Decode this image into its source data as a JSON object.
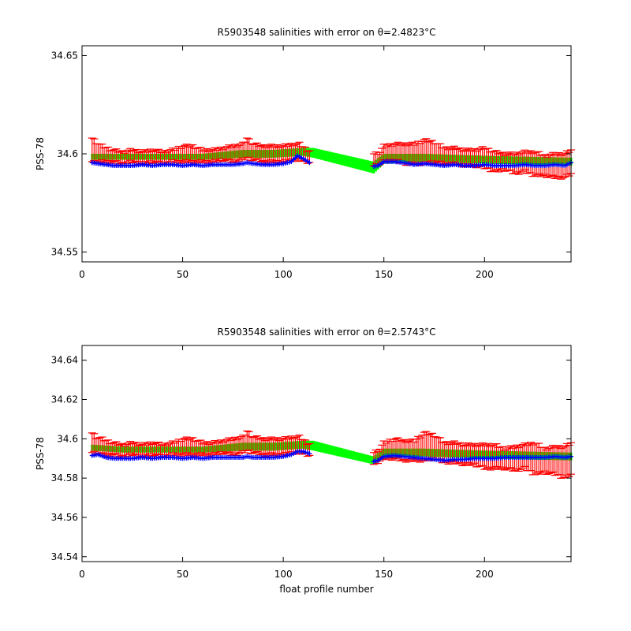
{
  "chart_data": [
    {
      "type": "line",
      "title": "R5903548 salinities with error on θ=2.4823°C",
      "xlabel": "",
      "ylabel": "PSS-78",
      "xlim": [
        0,
        243
      ],
      "ylim": [
        34.545,
        34.655
      ],
      "xticks": [
        "0",
        "50",
        "100",
        "150",
        "200"
      ],
      "yticks": [
        "34.55",
        "34.6",
        "34.65"
      ],
      "grid": false,
      "series": [
        {
          "role": "mapped-band",
          "color": "#00ff00",
          "x": [
            5,
            20,
            40,
            60,
            80,
            95,
            110,
            115,
            145,
            150,
            170,
            200,
            243
          ],
          "upper": [
            34.6,
            34.6,
            34.6,
            34.6,
            34.602,
            34.602,
            34.603,
            34.603,
            34.596,
            34.6,
            34.6,
            34.599,
            34.598
          ],
          "lower": [
            34.597,
            34.597,
            34.597,
            34.597,
            34.598,
            34.598,
            34.599,
            34.598,
            34.59,
            34.595,
            34.596,
            34.595,
            34.594
          ]
        },
        {
          "role": "measured-with-error",
          "color": "#ff0000",
          "x": [
            5,
            7,
            10,
            15,
            20,
            25,
            30,
            35,
            40,
            45,
            50,
            55,
            60,
            65,
            70,
            75,
            80,
            82,
            85,
            90,
            95,
            100,
            105,
            108,
            112,
            145,
            148,
            150,
            155,
            160,
            165,
            170,
            175,
            180,
            185,
            190,
            195,
            200,
            205,
            210,
            215,
            220,
            225,
            230,
            235,
            240,
            243
          ],
          "y": [
            34.602,
            34.601,
            34.6,
            34.599,
            34.598,
            34.599,
            34.598,
            34.599,
            34.598,
            34.599,
            34.6,
            34.6,
            34.599,
            34.599,
            34.6,
            34.6,
            34.601,
            34.603,
            34.601,
            34.6,
            34.6,
            34.6,
            34.601,
            34.601,
            34.599,
            34.597,
            34.598,
            34.6,
            34.601,
            34.6,
            34.6,
            34.601,
            34.601,
            34.599,
            34.599,
            34.598,
            34.598,
            34.598,
            34.596,
            34.596,
            34.595,
            34.596,
            34.595,
            34.594,
            34.594,
            34.594,
            34.596
          ],
          "err": [
            0.006,
            0.005,
            0.004,
            0.003,
            0.003,
            0.003,
            0.003,
            0.003,
            0.003,
            0.003,
            0.004,
            0.004,
            0.003,
            0.003,
            0.003,
            0.004,
            0.004,
            0.005,
            0.004,
            0.004,
            0.004,
            0.004,
            0.004,
            0.004,
            0.003,
            0.003,
            0.003,
            0.004,
            0.004,
            0.005,
            0.005,
            0.006,
            0.005,
            0.004,
            0.004,
            0.004,
            0.004,
            0.005,
            0.005,
            0.004,
            0.005,
            0.005,
            0.006,
            0.005,
            0.006,
            0.006,
            0.006
          ]
        },
        {
          "role": "calibrated",
          "color": "#0000ff",
          "x": [
            5,
            8,
            12,
            16,
            20,
            25,
            30,
            35,
            40,
            45,
            50,
            55,
            60,
            65,
            70,
            75,
            80,
            82,
            85,
            90,
            95,
            100,
            104,
            107,
            110,
            113,
            145,
            147,
            150,
            155,
            160,
            165,
            170,
            175,
            180,
            185,
            190,
            195,
            200,
            205,
            210,
            215,
            220,
            225,
            230,
            235,
            240,
            243
          ],
          "y": [
            34.5955,
            34.595,
            34.5945,
            34.594,
            34.594,
            34.594,
            34.5945,
            34.594,
            34.5945,
            34.5945,
            34.594,
            34.5945,
            34.594,
            34.5945,
            34.5945,
            34.5945,
            34.595,
            34.5955,
            34.595,
            34.5945,
            34.5945,
            34.595,
            34.596,
            34.599,
            34.5975,
            34.5955,
            34.5935,
            34.594,
            34.596,
            34.596,
            34.5955,
            34.5945,
            34.595,
            34.5945,
            34.594,
            34.5945,
            34.594,
            34.594,
            34.5945,
            34.594,
            34.594,
            34.594,
            34.5945,
            34.594,
            34.594,
            34.5945,
            34.594,
            34.5955
          ]
        }
      ]
    },
    {
      "type": "line",
      "title": "R5903548 salinities with error on θ=2.5743°C",
      "xlabel": "float profile number",
      "ylabel": "PSS-78",
      "xlim": [
        0,
        243
      ],
      "ylim": [
        34.5375,
        34.6475
      ],
      "xticks": [
        "0",
        "50",
        "100",
        "150",
        "200"
      ],
      "yticks": [
        "34.54",
        "34.56",
        "34.58",
        "34.6",
        "34.62",
        "34.64"
      ],
      "grid": false,
      "series": [
        {
          "role": "mapped-band",
          "color": "#00ff00",
          "x": [
            5,
            20,
            40,
            60,
            80,
            95,
            110,
            115,
            145,
            150,
            170,
            200,
            243
          ],
          "upper": [
            34.597,
            34.596,
            34.596,
            34.596,
            34.598,
            34.598,
            34.599,
            34.599,
            34.591,
            34.595,
            34.595,
            34.594,
            34.593
          ],
          "lower": [
            34.594,
            34.593,
            34.593,
            34.593,
            34.594,
            34.594,
            34.595,
            34.594,
            34.587,
            34.59,
            34.591,
            34.59,
            34.589
          ]
        },
        {
          "role": "measured-with-error",
          "color": "#ff0000",
          "x": [
            5,
            7,
            10,
            15,
            20,
            25,
            30,
            35,
            40,
            45,
            50,
            55,
            60,
            65,
            70,
            75,
            80,
            82,
            85,
            90,
            95,
            100,
            105,
            108,
            112,
            145,
            148,
            150,
            155,
            160,
            165,
            170,
            175,
            180,
            185,
            190,
            195,
            200,
            205,
            210,
            215,
            220,
            225,
            230,
            235,
            240,
            243
          ],
          "y": [
            34.598,
            34.597,
            34.596,
            34.595,
            34.594,
            34.595,
            34.594,
            34.595,
            34.594,
            34.595,
            34.596,
            34.596,
            34.595,
            34.595,
            34.596,
            34.596,
            34.597,
            34.599,
            34.597,
            34.596,
            34.596,
            34.596,
            34.597,
            34.597,
            34.595,
            34.59,
            34.592,
            34.594,
            34.595,
            34.594,
            34.594,
            34.596,
            34.596,
            34.593,
            34.593,
            34.592,
            34.592,
            34.591,
            34.591,
            34.59,
            34.59,
            34.591,
            34.59,
            34.589,
            34.589,
            34.588,
            34.59
          ],
          "err": [
            0.005,
            0.004,
            0.004,
            0.003,
            0.003,
            0.003,
            0.003,
            0.003,
            0.003,
            0.003,
            0.004,
            0.004,
            0.003,
            0.003,
            0.003,
            0.004,
            0.004,
            0.005,
            0.004,
            0.004,
            0.004,
            0.004,
            0.004,
            0.004,
            0.003,
            0.003,
            0.003,
            0.004,
            0.005,
            0.005,
            0.005,
            0.007,
            0.006,
            0.005,
            0.005,
            0.005,
            0.005,
            0.006,
            0.006,
            0.005,
            0.006,
            0.006,
            0.008,
            0.006,
            0.007,
            0.008,
            0.008
          ]
        },
        {
          "role": "calibrated",
          "color": "#0000ff",
          "x": [
            5,
            8,
            12,
            16,
            20,
            25,
            30,
            35,
            40,
            45,
            50,
            55,
            60,
            65,
            70,
            75,
            80,
            82,
            85,
            90,
            95,
            100,
            104,
            107,
            110,
            113,
            145,
            147,
            150,
            155,
            160,
            165,
            170,
            175,
            180,
            185,
            190,
            195,
            200,
            205,
            210,
            215,
            220,
            225,
            230,
            235,
            240,
            243
          ],
          "y": [
            34.5915,
            34.592,
            34.5905,
            34.59,
            34.59,
            34.59,
            34.5905,
            34.59,
            34.5905,
            34.5905,
            34.59,
            34.5905,
            34.59,
            34.5905,
            34.5905,
            34.5905,
            34.5905,
            34.591,
            34.5905,
            34.5905,
            34.5905,
            34.591,
            34.592,
            34.5935,
            34.5935,
            34.5925,
            34.5885,
            34.589,
            34.591,
            34.5915,
            34.591,
            34.5905,
            34.59,
            34.5895,
            34.589,
            34.5895,
            34.5895,
            34.59,
            34.59,
            34.59,
            34.5905,
            34.5905,
            34.5905,
            34.5905,
            34.5905,
            34.591,
            34.5905,
            34.591
          ]
        }
      ]
    }
  ]
}
